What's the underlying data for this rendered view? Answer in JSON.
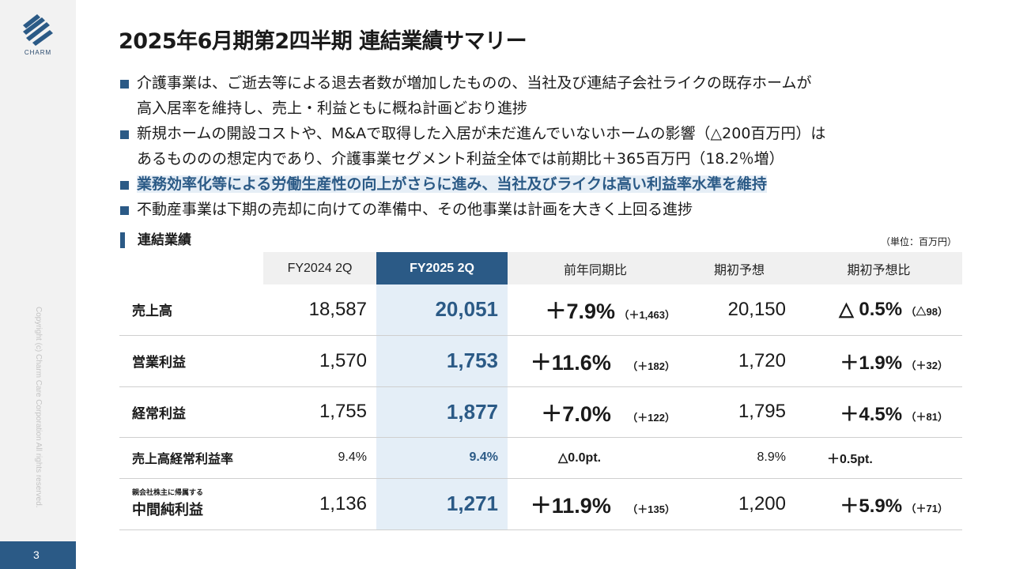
{
  "brand": {
    "name": "CHARM",
    "color": "#2b5a86"
  },
  "copyright": "Copyright (c) Charm Care Corporation All rights reserved.",
  "page_number": "3",
  "title": "2025年6月期第2四半期 連結業績サマリー",
  "bullets": [
    {
      "line1": "介護事業は、ご逝去等による退去者数が増加したものの、当社及び連結子会社ライクの既存ホームが",
      "line2": "高入居率を維持し、売上・利益ともに概ね計画どおり進捗"
    },
    {
      "line1": "新規ホームの開設コストや、M&Aで取得した入居が未だ進んでいないホームの影響（△200百万円）は",
      "line2": "あるもののの想定内であり、介護事業セグメント利益全体では前期比＋365百万円（18.2％増）"
    },
    {
      "line1": "業務効率化等による労働生産性の向上がさらに進み、当社及びライクは高い利益率水準を維持",
      "highlight": true
    },
    {
      "line1": "不動産事業は下期の売却に向けての準備中、その他事業は計画を大きく上回る進捗"
    }
  ],
  "section_title": "連結業績",
  "unit": "（単位：百万円）",
  "table": {
    "headers": [
      "",
      "FY2024 2Q",
      "FY2025 2Q",
      "前年同期比",
      "期初予想",
      "期初予想比"
    ],
    "rows": [
      {
        "label": "売上高",
        "prev": "18,587",
        "cur": "20,051",
        "yoy_pct": "＋7.9%",
        "yoy_abs": "（＋1,463）",
        "plan": "20,150",
        "vs_plan_pct": "△ 0.5%",
        "vs_plan_abs": "（△98）"
      },
      {
        "label": "営業利益",
        "prev": "1,570",
        "cur": "1,753",
        "yoy_pct": "＋11.6%",
        "yoy_abs": "（＋182）",
        "plan": "1,720",
        "vs_plan_pct": "＋1.9%",
        "vs_plan_abs": "（＋32）"
      },
      {
        "label": "経常利益",
        "prev": "1,755",
        "cur": "1,877",
        "yoy_pct": "＋7.0%",
        "yoy_abs": "（＋122）",
        "plan": "1,795",
        "vs_plan_pct": "＋4.5%",
        "vs_plan_abs": "（＋81）"
      },
      {
        "label": "売上高経常利益率",
        "prev": "9.4%",
        "cur": "9.4%",
        "yoy_pct": "△0.0pt.",
        "plan": "8.9%",
        "vs_plan_pct": "＋0.5pt."
      },
      {
        "sublabel": "親会社株主に帰属する",
        "label": "中間純利益",
        "prev": "1,136",
        "cur": "1,271",
        "yoy_pct": "＋11.9%",
        "yoy_abs": "（＋135）",
        "plan": "1,200",
        "vs_plan_pct": "＋5.9%",
        "vs_plan_abs": "（＋71）"
      }
    ]
  }
}
